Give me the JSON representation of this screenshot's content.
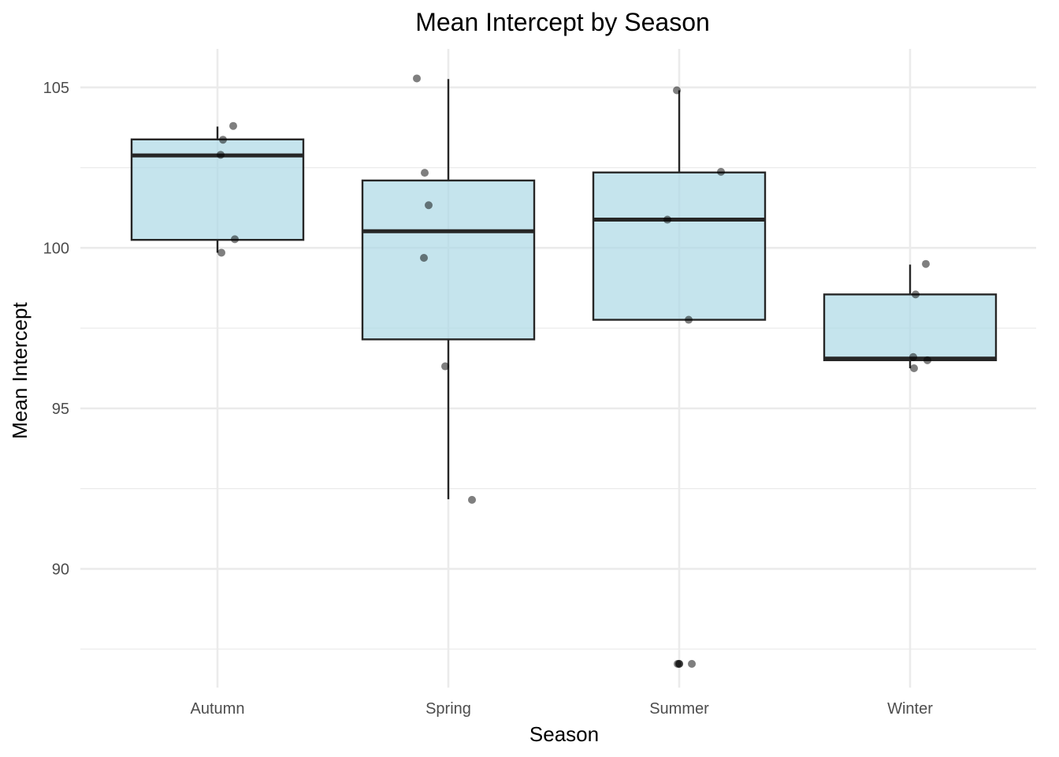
{
  "chart_data": {
    "type": "box",
    "title": "Mean Intercept by Season",
    "xlabel": "Season",
    "ylabel": "Mean Intercept",
    "categories": [
      "Autumn",
      "Spring",
      "Summer",
      "Winter"
    ],
    "ylim": [
      86.3,
      106.2
    ],
    "yticks": [
      90,
      95,
      100,
      105
    ],
    "grid": true,
    "legend": "none",
    "colors": {
      "box_fill": "#add8e6",
      "box_stroke": "#262626",
      "point": "#000000",
      "grid": "#ebebeb"
    },
    "boxes": [
      {
        "category": "Autumn",
        "min": 99.85,
        "q1": 100.25,
        "median": 102.88,
        "q3": 103.38,
        "max": 103.78
      },
      {
        "category": "Spring",
        "min": 92.17,
        "q1": 97.15,
        "median": 100.52,
        "q3": 102.1,
        "max": 105.26
      },
      {
        "category": "Summer",
        "min": 97.76,
        "q1": 97.76,
        "median": 100.88,
        "q3": 102.35,
        "max": 104.91
      },
      {
        "category": "Winter",
        "min": 96.25,
        "q1": 96.5,
        "median": 96.55,
        "q3": 98.55,
        "max": 99.48
      }
    ],
    "points": [
      {
        "category": "Autumn",
        "values": [
          103.8,
          103.37,
          102.9,
          100.27,
          99.85
        ]
      },
      {
        "category": "Spring",
        "values": [
          105.28,
          102.34,
          101.33,
          99.69,
          96.31,
          92.15
        ]
      },
      {
        "category": "Summer",
        "values": [
          104.91,
          102.37,
          100.88,
          97.76,
          87.04,
          87.04
        ]
      },
      {
        "category": "Winter",
        "values": [
          99.5,
          98.55,
          96.6,
          96.5,
          96.25
        ]
      }
    ],
    "outliers": [
      {
        "category": "Summer",
        "values": [
          87.04,
          87.04
        ]
      }
    ]
  }
}
